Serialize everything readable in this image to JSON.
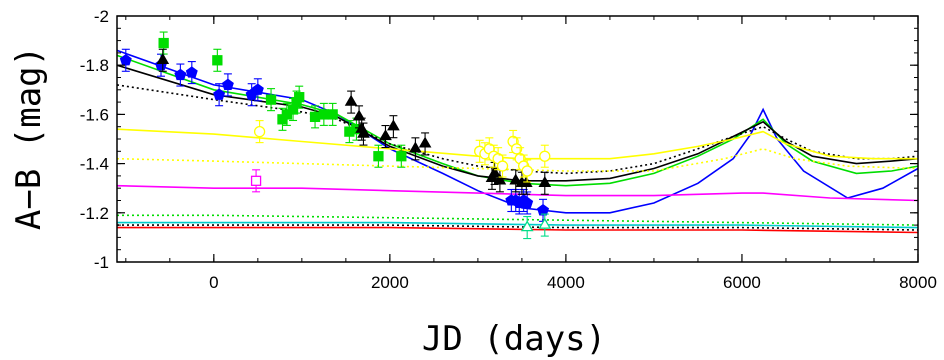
{
  "chart_data": {
    "type": "scatter",
    "title": "",
    "xlabel": "JD (days)",
    "ylabel": "A−B (mag)",
    "xlim": [
      -1100,
      8000
    ],
    "ylim": [
      -1,
      -2
    ],
    "y_inverted": true,
    "x_ticks": [
      0,
      2000,
      4000,
      6000,
      8000
    ],
    "x_tick_labels": [
      "0",
      "2000",
      "4000",
      "6000",
      "8000"
    ],
    "y_ticks": [
      -1,
      -1.2,
      -1.4,
      -1.6,
      -1.8,
      -2
    ],
    "y_tick_labels": [
      "-1",
      "-1.2",
      "-1.4",
      "-1.6",
      "-1.8",
      "-2"
    ],
    "grid": false,
    "series": [
      {
        "marker": "filled-pentagon",
        "color": "#0000ff",
        "points": [
          [
            -1000,
            -1.82
          ],
          [
            -600,
            -1.8
          ],
          [
            -380,
            -1.76
          ],
          [
            -250,
            -1.77
          ],
          [
            60,
            -1.68
          ],
          [
            160,
            -1.72
          ],
          [
            430,
            -1.68
          ],
          [
            500,
            -1.7
          ],
          [
            3380,
            -1.25
          ],
          [
            3430,
            -1.25
          ],
          [
            3470,
            -1.24
          ],
          [
            3520,
            -1.25
          ],
          [
            3560,
            -1.24
          ],
          [
            3740,
            -1.21
          ]
        ]
      },
      {
        "marker": "filled-square",
        "color": "#00dd00",
        "points": [
          [
            -570,
            -1.89
          ],
          [
            40,
            -1.82
          ],
          [
            650,
            -1.66
          ],
          [
            780,
            -1.58
          ],
          [
            830,
            -1.6
          ],
          [
            900,
            -1.62
          ],
          [
            940,
            -1.65
          ],
          [
            970,
            -1.67
          ],
          [
            1150,
            -1.59
          ],
          [
            1250,
            -1.6
          ],
          [
            1350,
            -1.6
          ],
          [
            1540,
            -1.53
          ],
          [
            1620,
            -1.54
          ],
          [
            1870,
            -1.43
          ],
          [
            2130,
            -1.43
          ]
        ]
      },
      {
        "marker": "filled-triangle",
        "color": "#000000",
        "points": [
          [
            -580,
            -1.82
          ],
          [
            1560,
            -1.65
          ],
          [
            1650,
            -1.59
          ],
          [
            1680,
            -1.54
          ],
          [
            1700,
            -1.52
          ],
          [
            1950,
            -1.51
          ],
          [
            2040,
            -1.55
          ],
          [
            2290,
            -1.46
          ],
          [
            2400,
            -1.48
          ],
          [
            3160,
            -1.34
          ],
          [
            3190,
            -1.36
          ],
          [
            3250,
            -1.33
          ],
          [
            3430,
            -1.33
          ],
          [
            3500,
            -1.32
          ],
          [
            3550,
            -1.32
          ],
          [
            3760,
            -1.32
          ]
        ]
      },
      {
        "marker": "open-circle",
        "color": "#ffff00",
        "points": [
          [
            520,
            -1.53
          ],
          [
            3020,
            -1.45
          ],
          [
            3080,
            -1.44
          ],
          [
            3130,
            -1.46
          ],
          [
            3180,
            -1.43
          ],
          [
            3230,
            -1.42
          ],
          [
            3280,
            -1.39
          ],
          [
            3400,
            -1.49
          ],
          [
            3440,
            -1.46
          ],
          [
            3480,
            -1.42
          ],
          [
            3520,
            -1.39
          ],
          [
            3560,
            -1.37
          ],
          [
            3760,
            -1.43
          ]
        ]
      },
      {
        "marker": "open-square",
        "color": "#ff00ff",
        "points": [
          [
            480,
            -1.33
          ]
        ]
      },
      {
        "marker": "open-triangle",
        "color": "#00dd88",
        "points": [
          [
            3560,
            -1.14
          ],
          [
            3760,
            -1.15
          ]
        ]
      }
    ],
    "curves": [
      {
        "color": "#0000ff",
        "dash": "solid",
        "points": [
          [
            -1100,
            -1.86
          ],
          [
            0,
            -1.72
          ],
          [
            1000,
            -1.66
          ],
          [
            1400,
            -1.6
          ],
          [
            2000,
            -1.46
          ],
          [
            2600,
            -1.36
          ],
          [
            3000,
            -1.29
          ],
          [
            3500,
            -1.22
          ],
          [
            4000,
            -1.2
          ],
          [
            4500,
            -1.2
          ],
          [
            5000,
            -1.24
          ],
          [
            5500,
            -1.32
          ],
          [
            5900,
            -1.42
          ],
          [
            6100,
            -1.52
          ],
          [
            6240,
            -1.62
          ],
          [
            6400,
            -1.5
          ],
          [
            6700,
            -1.37
          ],
          [
            7200,
            -1.26
          ],
          [
            7600,
            -1.3
          ],
          [
            8000,
            -1.38
          ]
        ]
      },
      {
        "color": "#00dd00",
        "dash": "solid",
        "points": [
          [
            -1100,
            -1.84
          ],
          [
            0,
            -1.7
          ],
          [
            1000,
            -1.64
          ],
          [
            1400,
            -1.6
          ],
          [
            2000,
            -1.48
          ],
          [
            2600,
            -1.4
          ],
          [
            3000,
            -1.35
          ],
          [
            3500,
            -1.32
          ],
          [
            4000,
            -1.31
          ],
          [
            4500,
            -1.32
          ],
          [
            5000,
            -1.36
          ],
          [
            5500,
            -1.43
          ],
          [
            5900,
            -1.5
          ],
          [
            6240,
            -1.58
          ],
          [
            6500,
            -1.48
          ],
          [
            6800,
            -1.41
          ],
          [
            7300,
            -1.36
          ],
          [
            7700,
            -1.37
          ],
          [
            8000,
            -1.39
          ]
        ]
      },
      {
        "color": "#000000",
        "dash": "solid",
        "points": [
          [
            -1100,
            -1.8
          ],
          [
            0,
            -1.68
          ],
          [
            1000,
            -1.63
          ],
          [
            1400,
            -1.59
          ],
          [
            2000,
            -1.47
          ],
          [
            2600,
            -1.39
          ],
          [
            3000,
            -1.35
          ],
          [
            3500,
            -1.33
          ],
          [
            4000,
            -1.33
          ],
          [
            4500,
            -1.34
          ],
          [
            5000,
            -1.38
          ],
          [
            5500,
            -1.44
          ],
          [
            5900,
            -1.51
          ],
          [
            6240,
            -1.57
          ],
          [
            6500,
            -1.49
          ],
          [
            6800,
            -1.43
          ],
          [
            7300,
            -1.4
          ],
          [
            7700,
            -1.41
          ],
          [
            8000,
            -1.42
          ]
        ]
      },
      {
        "color": "#000000",
        "dash": "dotted",
        "points": [
          [
            -1100,
            -1.72
          ],
          [
            0,
            -1.66
          ],
          [
            1000,
            -1.61
          ],
          [
            1400,
            -1.58
          ],
          [
            2000,
            -1.48
          ],
          [
            2600,
            -1.42
          ],
          [
            3000,
            -1.39
          ],
          [
            3500,
            -1.37
          ],
          [
            4000,
            -1.36
          ],
          [
            4500,
            -1.37
          ],
          [
            5000,
            -1.4
          ],
          [
            5500,
            -1.46
          ],
          [
            5900,
            -1.51
          ],
          [
            6240,
            -1.55
          ],
          [
            6500,
            -1.5
          ],
          [
            6800,
            -1.45
          ],
          [
            7300,
            -1.42
          ],
          [
            7700,
            -1.42
          ],
          [
            8000,
            -1.43
          ]
        ]
      },
      {
        "color": "#ffff00",
        "dash": "solid",
        "points": [
          [
            -1100,
            -1.54
          ],
          [
            0,
            -1.52
          ],
          [
            1000,
            -1.49
          ],
          [
            2000,
            -1.46
          ],
          [
            3000,
            -1.43
          ],
          [
            3500,
            -1.42
          ],
          [
            4000,
            -1.42
          ],
          [
            4500,
            -1.42
          ],
          [
            5000,
            -1.44
          ],
          [
            5500,
            -1.47
          ],
          [
            5900,
            -1.5
          ],
          [
            6240,
            -1.53
          ],
          [
            6500,
            -1.48
          ],
          [
            7000,
            -1.43
          ],
          [
            7500,
            -1.42
          ],
          [
            8000,
            -1.42
          ]
        ]
      },
      {
        "color": "#ffff00",
        "dash": "dotted",
        "points": [
          [
            -1100,
            -1.42
          ],
          [
            0,
            -1.41
          ],
          [
            1000,
            -1.4
          ],
          [
            2000,
            -1.39
          ],
          [
            3000,
            -1.38
          ],
          [
            4000,
            -1.37
          ],
          [
            5000,
            -1.37
          ],
          [
            5800,
            -1.42
          ],
          [
            6240,
            -1.46
          ],
          [
            6600,
            -1.42
          ],
          [
            7200,
            -1.39
          ],
          [
            8000,
            -1.38
          ]
        ]
      },
      {
        "color": "#ff00ff",
        "dash": "solid",
        "points": [
          [
            -1100,
            -1.31
          ],
          [
            0,
            -1.3
          ],
          [
            1000,
            -1.3
          ],
          [
            2000,
            -1.29
          ],
          [
            3000,
            -1.28
          ],
          [
            4000,
            -1.27
          ],
          [
            5000,
            -1.27
          ],
          [
            6000,
            -1.28
          ],
          [
            6240,
            -1.28
          ],
          [
            7000,
            -1.26
          ],
          [
            8000,
            -1.25
          ]
        ]
      },
      {
        "color": "#00dd00",
        "dash": "dotted",
        "points": [
          [
            -1100,
            -1.19
          ],
          [
            0,
            -1.19
          ],
          [
            2000,
            -1.18
          ],
          [
            4000,
            -1.17
          ],
          [
            6000,
            -1.16
          ],
          [
            8000,
            -1.15
          ]
        ]
      },
      {
        "color": "#00cccc",
        "dash": "solid",
        "points": [
          [
            -1100,
            -1.16
          ],
          [
            0,
            -1.16
          ],
          [
            2000,
            -1.16
          ],
          [
            4000,
            -1.15
          ],
          [
            6000,
            -1.15
          ],
          [
            8000,
            -1.14
          ]
        ]
      },
      {
        "color": "#000000",
        "dash": "dotted",
        "points": [
          [
            -1100,
            -1.15
          ],
          [
            0,
            -1.15
          ],
          [
            2000,
            -1.15
          ],
          [
            4000,
            -1.14
          ],
          [
            6000,
            -1.14
          ],
          [
            8000,
            -1.13
          ]
        ]
      },
      {
        "color": "#ff0000",
        "dash": "solid",
        "points": [
          [
            -1100,
            -1.14
          ],
          [
            0,
            -1.14
          ],
          [
            2000,
            -1.14
          ],
          [
            4000,
            -1.13
          ],
          [
            6000,
            -1.13
          ],
          [
            8000,
            -1.12
          ]
        ]
      }
    ]
  }
}
